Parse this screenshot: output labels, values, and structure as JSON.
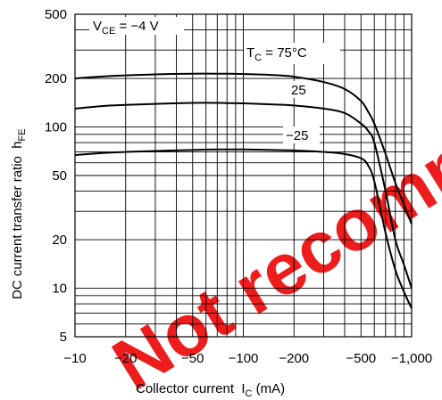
{
  "chart_data": {
    "type": "line",
    "x_scale": "log",
    "y_scale": "log",
    "xlim": [
      -10,
      -1000
    ],
    "ylim": [
      5,
      500
    ],
    "x_ticks": [
      -10,
      -20,
      -50,
      -100,
      -200,
      -500,
      -1000
    ],
    "x_tick_labels": [
      "−10",
      "−20",
      "−50",
      "−100",
      "−200",
      "−500",
      "−1,000"
    ],
    "y_ticks": [
      5,
      10,
      20,
      50,
      100,
      200,
      500
    ],
    "y_tick_labels": [
      "5",
      "10",
      "20",
      "50",
      "100",
      "200",
      "500"
    ],
    "xlabel": "Collector current  I",
    "xlabel_sub": "C",
    "xlabel_unit": " (mA)",
    "ylabel": "DC current transfer ratio  h",
    "ylabel_sub": "FE",
    "grid": true,
    "annotations": {
      "vce": {
        "pre": "V",
        "sub": "CE",
        "post": " = −4 V"
      },
      "tc": {
        "pre": "T",
        "sub": "C",
        "post": " = 75°C"
      },
      "t25": "25",
      "tm25": "−25"
    },
    "series": [
      {
        "name": "75°C",
        "x": [
          -10,
          -15,
          -20,
          -30,
          -50,
          -70,
          -100,
          -150,
          -200,
          -300,
          -400,
          -500,
          -550,
          -600,
          -700,
          -800,
          -900,
          -1000
        ],
        "y": [
          200,
          206,
          209,
          212,
          214,
          214,
          213,
          210,
          205,
          190,
          172,
          145,
          125,
          105,
          68,
          45,
          33,
          25
        ]
      },
      {
        "name": "25",
        "x": [
          -10,
          -15,
          -20,
          -30,
          -50,
          -70,
          -100,
          -150,
          -200,
          -300,
          -400,
          -500,
          -550,
          -600,
          -700,
          -800,
          -900,
          -1000
        ],
        "y": [
          130,
          135,
          137,
          139,
          141,
          141,
          140,
          138,
          136,
          130,
          122,
          105,
          95,
          80,
          40,
          20,
          14,
          10
        ]
      },
      {
        "name": "−25",
        "x": [
          -10,
          -15,
          -20,
          -30,
          -50,
          -70,
          -100,
          -150,
          -200,
          -300,
          -400,
          -500,
          -550,
          -600,
          -700,
          -800,
          -900,
          -1000
        ],
        "y": [
          67,
          69,
          70,
          71,
          72,
          72.5,
          72.5,
          72,
          71.5,
          70,
          68,
          64,
          58,
          46,
          22,
          13,
          9.5,
          7.5
        ]
      }
    ]
  },
  "watermark": {
    "text": "Not recommended for new design",
    "color": "#ee1111"
  }
}
